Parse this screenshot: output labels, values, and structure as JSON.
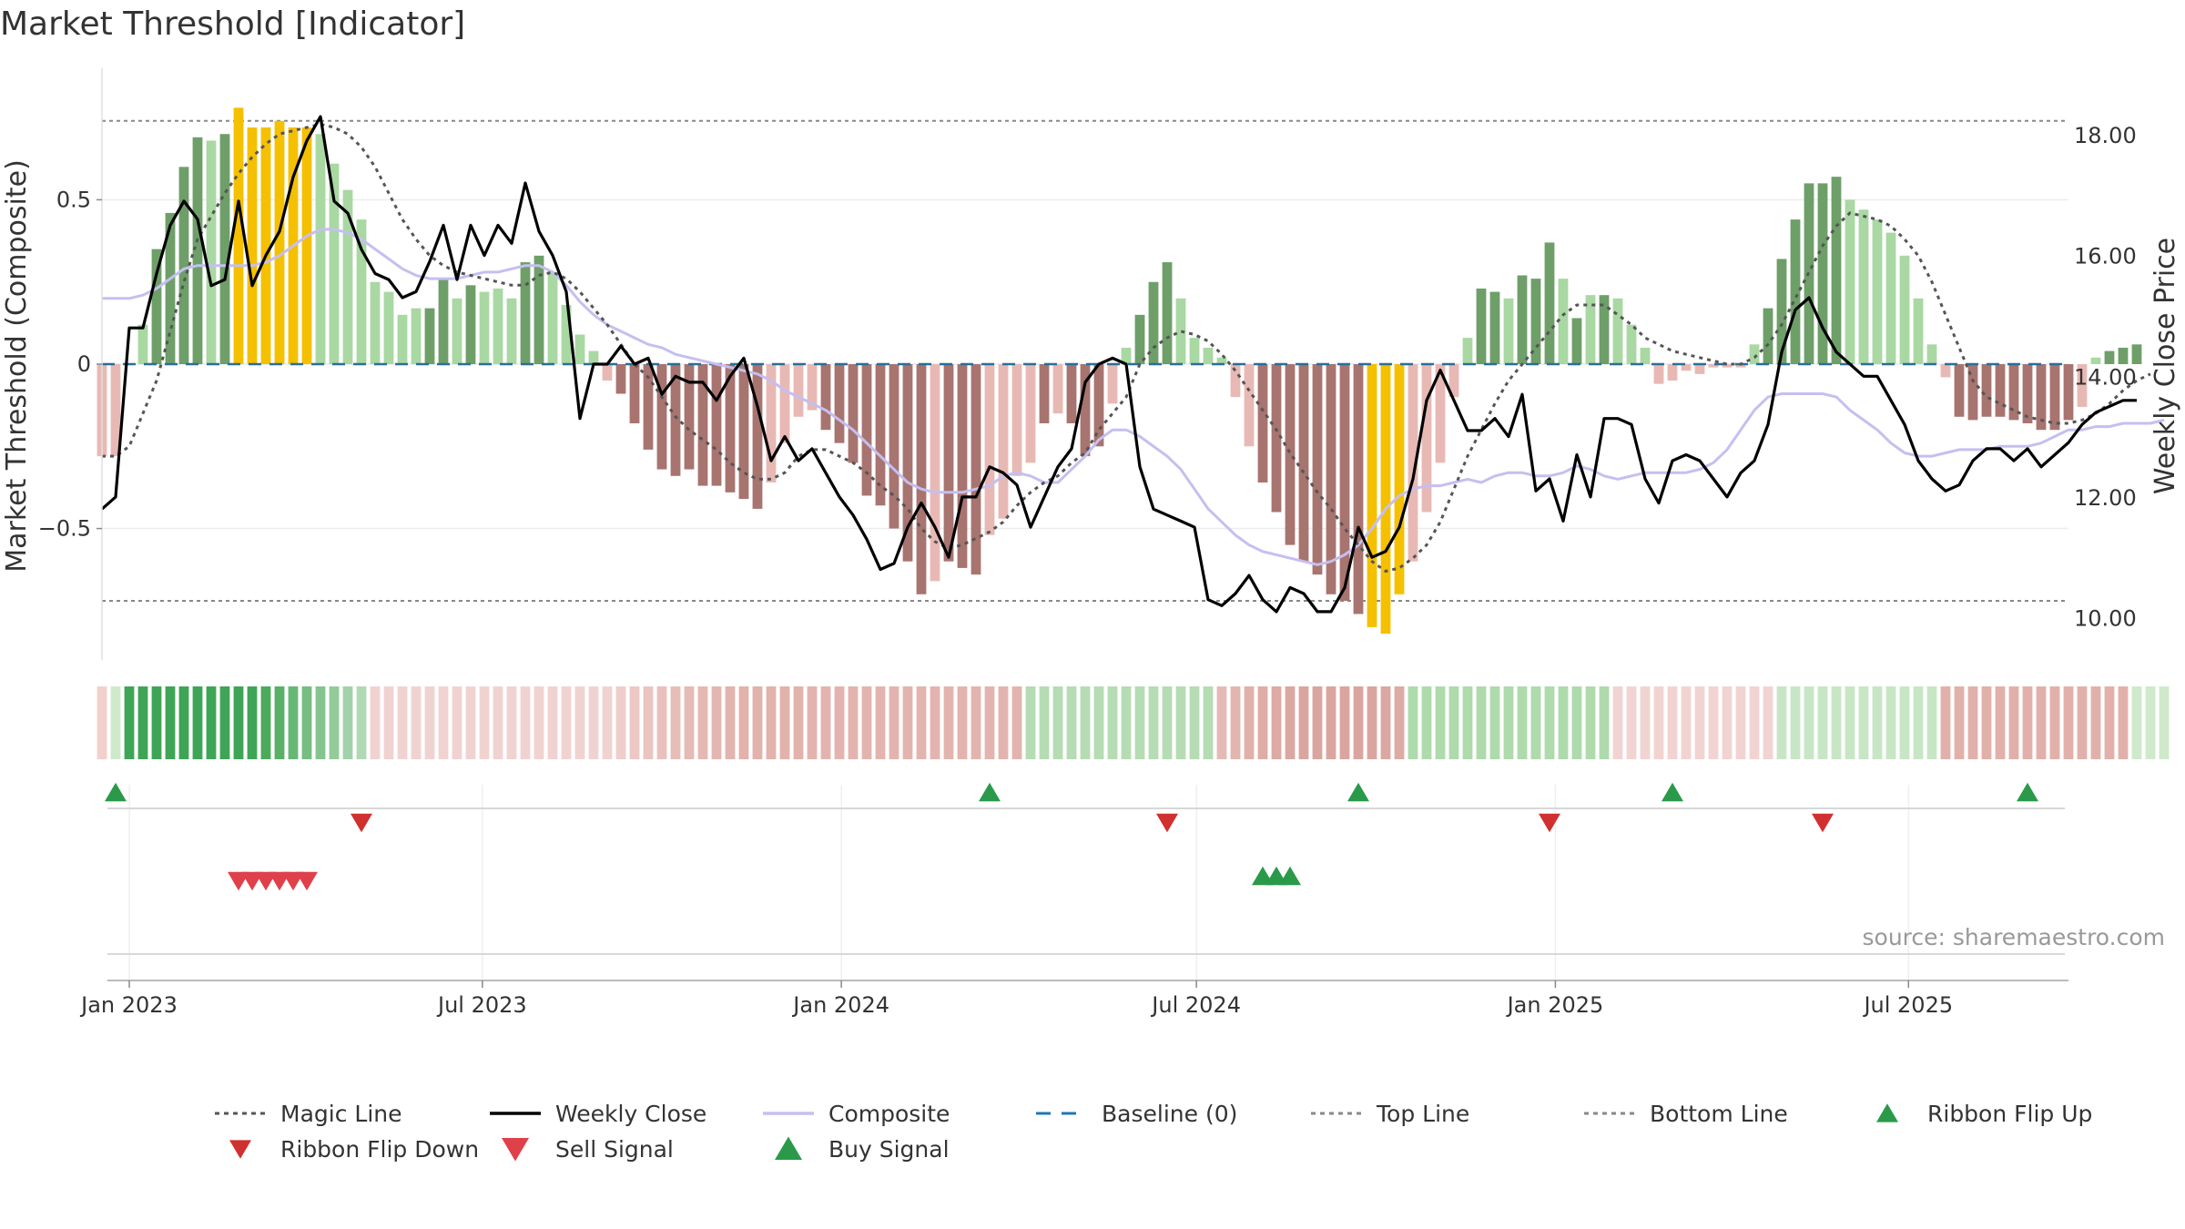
{
  "chart_data": {
    "type": "bar",
    "title": "Market Threshold [Indicator]",
    "ylabel_left": "Market Threshold (Composite)",
    "ylabel_right": "Weekly Close Price",
    "source": "source: sharemaestro.com",
    "ylim_left": [
      -0.9,
      0.9
    ],
    "ylim_right": [
      9.3,
      19.1
    ],
    "left_ticks": [
      {
        "v": 0.5,
        "label": "0.5"
      },
      {
        "v": 0,
        "label": "0"
      },
      {
        "v": -0.5,
        "label": "−0.5"
      }
    ],
    "right_ticks": [
      {
        "v": 18,
        "label": "18.00"
      },
      {
        "v": 16,
        "label": "16.00"
      },
      {
        "v": 14,
        "label": "14.00"
      },
      {
        "v": 12,
        "label": "12.00"
      },
      {
        "v": 10,
        "label": "10.00"
      }
    ],
    "x_ticks": [
      {
        "date": "2023-01-01",
        "label": "Jan 2023"
      },
      {
        "date": "2023-07-01",
        "label": "Jul 2023"
      },
      {
        "date": "2024-01-01",
        "label": "Jan 2024"
      },
      {
        "date": "2024-07-01",
        "label": "Jul 2024"
      },
      {
        "date": "2025-01-01",
        "label": "Jan 2025"
      },
      {
        "date": "2025-07-01",
        "label": "Jul 2025"
      }
    ],
    "x_range": [
      "2022-12-18",
      "2025-09-21"
    ],
    "start_date": "2022-12-18",
    "top_line": 0.74,
    "bottom_line": -0.72,
    "baseline": 0,
    "bars": [
      -0.28,
      -0.28,
      0,
      0.12,
      0.35,
      0.46,
      0.6,
      0.69,
      0.68,
      0.7,
      0.78,
      0.72,
      0.72,
      0.74,
      0.72,
      0.72,
      0.7,
      0.61,
      0.53,
      0.44,
      0.25,
      0.22,
      0.15,
      0.17,
      0.17,
      0.26,
      0.2,
      0.24,
      0.22,
      0.23,
      0.2,
      0.31,
      0.33,
      0.28,
      0.18,
      0.09,
      0.04,
      -0.05,
      -0.09,
      -0.18,
      -0.26,
      -0.32,
      -0.34,
      -0.32,
      -0.37,
      -0.37,
      -0.39,
      -0.41,
      -0.44,
      -0.36,
      -0.24,
      -0.16,
      -0.14,
      -0.2,
      -0.24,
      -0.3,
      -0.4,
      -0.43,
      -0.5,
      -0.6,
      -0.7,
      -0.66,
      -0.6,
      -0.62,
      -0.64,
      -0.52,
      -0.47,
      -0.34,
      -0.3,
      -0.18,
      -0.15,
      -0.18,
      -0.28,
      -0.25,
      -0.12,
      0.05,
      0.15,
      0.25,
      0.31,
      0.2,
      0.08,
      0.05,
      0.02,
      -0.1,
      -0.25,
      -0.36,
      -0.45,
      -0.55,
      -0.6,
      -0.64,
      -0.7,
      -0.72,
      -0.76,
      -0.8,
      -0.82,
      -0.7,
      -0.6,
      -0.45,
      -0.3,
      -0.1,
      0.08,
      0.23,
      0.22,
      0.2,
      0.27,
      0.26,
      0.37,
      0.26,
      0.14,
      0.21,
      0.21,
      0.2,
      0.12,
      0.05,
      -0.06,
      -0.05,
      -0.02,
      -0.03,
      -0.01,
      -0.01,
      -0.01,
      0.06,
      0.17,
      0.32,
      0.44,
      0.55,
      0.55,
      0.57,
      0.5,
      0.47,
      0.44,
      0.4,
      0.33,
      0.2,
      0.06,
      -0.04,
      -0.16,
      -0.17,
      -0.16,
      -0.16,
      -0.17,
      -0.18,
      -0.2,
      -0.2,
      -0.17,
      -0.13,
      0.02,
      0.04,
      0.05,
      0.06
    ],
    "bar_colors": [
      "#e8b9b4",
      "#e8b9b4",
      "#e8b9b4",
      "#a9d8a3",
      "#6e9f69",
      "#6e9f69",
      "#6e9f69",
      "#6e9f69",
      "#a9d8a3",
      "#6e9f69",
      "#f5c000",
      "#f5c000",
      "#f5c000",
      "#f5c000",
      "#f5c000",
      "#f5c000",
      "#a9d8a3",
      "#a9d8a3",
      "#a9d8a3",
      "#a9d8a3",
      "#a9d8a3",
      "#a9d8a3",
      "#a9d8a3",
      "#a9d8a3",
      "#6e9f69",
      "#6e9f69",
      "#a9d8a3",
      "#6e9f69",
      "#a9d8a3",
      "#a9d8a3",
      "#a9d8a3",
      "#6e9f69",
      "#6e9f69",
      "#a9d8a3",
      "#a9d8a3",
      "#a9d8a3",
      "#a9d8a3",
      "#e8b9b4",
      "#a87470",
      "#a87470",
      "#a87470",
      "#a87470",
      "#a87470",
      "#a87470",
      "#a87470",
      "#a87470",
      "#a87470",
      "#a87470",
      "#a87470",
      "#e8b9b4",
      "#e8b9b4",
      "#e8b9b4",
      "#e8b9b4",
      "#a87470",
      "#a87470",
      "#a87470",
      "#a87470",
      "#a87470",
      "#a87470",
      "#a87470",
      "#a87470",
      "#e8b9b4",
      "#a87470",
      "#a87470",
      "#a87470",
      "#e8b9b4",
      "#e8b9b4",
      "#e8b9b4",
      "#e8b9b4",
      "#a87470",
      "#e8b9b4",
      "#a87470",
      "#a87470",
      "#a87470",
      "#e8b9b4",
      "#a9d8a3",
      "#6e9f69",
      "#6e9f69",
      "#6e9f69",
      "#a9d8a3",
      "#a9d8a3",
      "#a9d8a3",
      "#a9d8a3",
      "#e8b9b4",
      "#e8b9b4",
      "#a87470",
      "#a87470",
      "#a87470",
      "#a87470",
      "#a87470",
      "#a87470",
      "#a87470",
      "#a87470",
      "#f5c000",
      "#f5c000",
      "#f5c000",
      "#e8b9b4",
      "#e8b9b4",
      "#e8b9b4",
      "#e8b9b4",
      "#a9d8a3",
      "#6e9f69",
      "#6e9f69",
      "#a9d8a3",
      "#6e9f69",
      "#6e9f69",
      "#6e9f69",
      "#a9d8a3",
      "#6e9f69",
      "#a9d8a3",
      "#6e9f69",
      "#a9d8a3",
      "#a9d8a3",
      "#a9d8a3",
      "#e8b9b4",
      "#e8b9b4",
      "#e8b9b4",
      "#e8b9b4",
      "#e8b9b4",
      "#e8b9b4",
      "#e8b9b4",
      "#a9d8a3",
      "#6e9f69",
      "#6e9f69",
      "#6e9f69",
      "#6e9f69",
      "#6e9f69",
      "#6e9f69",
      "#a9d8a3",
      "#a9d8a3",
      "#a9d8a3",
      "#a9d8a3",
      "#a9d8a3",
      "#a9d8a3",
      "#a9d8a3",
      "#e8b9b4",
      "#a87470",
      "#a87470",
      "#a87470",
      "#a87470",
      "#a87470",
      "#a87470",
      "#a87470",
      "#a87470",
      "#a87470",
      "#e8b9b4",
      "#a9d8a3",
      "#6e9f69",
      "#6e9f69",
      "#6e9f69"
    ],
    "series": [
      {
        "name": "Magic Line",
        "color": "#555555",
        "style": "dotted",
        "axis": "left",
        "values": [
          -0.28,
          -0.28,
          -0.25,
          -0.15,
          -0.05,
          0.1,
          0.25,
          0.38,
          0.45,
          0.52,
          0.58,
          0.63,
          0.67,
          0.7,
          0.71,
          0.72,
          0.73,
          0.72,
          0.7,
          0.66,
          0.6,
          0.52,
          0.44,
          0.38,
          0.33,
          0.3,
          0.28,
          0.27,
          0.26,
          0.25,
          0.24,
          0.24,
          0.27,
          0.28,
          0.26,
          0.22,
          0.17,
          0.12,
          0.06,
          0.0,
          -0.04,
          -0.1,
          -0.16,
          -0.2,
          -0.23,
          -0.26,
          -0.3,
          -0.33,
          -0.35,
          -0.35,
          -0.33,
          -0.28,
          -0.26,
          -0.26,
          -0.28,
          -0.3,
          -0.33,
          -0.37,
          -0.4,
          -0.44,
          -0.5,
          -0.54,
          -0.56,
          -0.55,
          -0.53,
          -0.51,
          -0.48,
          -0.43,
          -0.39,
          -0.36,
          -0.34,
          -0.3,
          -0.27,
          -0.2,
          -0.15,
          -0.1,
          0.0,
          0.05,
          0.08,
          0.1,
          0.09,
          0.07,
          0.03,
          -0.02,
          -0.08,
          -0.14,
          -0.2,
          -0.27,
          -0.33,
          -0.39,
          -0.44,
          -0.5,
          -0.55,
          -0.6,
          -0.63,
          -0.62,
          -0.59,
          -0.55,
          -0.48,
          -0.38,
          -0.28,
          -0.2,
          -0.12,
          -0.05,
          0.0,
          0.05,
          0.1,
          0.15,
          0.18,
          0.18,
          0.18,
          0.15,
          0.12,
          0.08,
          0.06,
          0.04,
          0.03,
          0.02,
          0.01,
          0.0,
          0.0,
          0.02,
          0.06,
          0.12,
          0.2,
          0.28,
          0.36,
          0.42,
          0.46,
          0.45,
          0.44,
          0.42,
          0.38,
          0.33,
          0.25,
          0.15,
          0.05,
          -0.05,
          -0.1,
          -0.12,
          -0.14,
          -0.16,
          -0.17,
          -0.18,
          -0.18,
          -0.17,
          -0.15,
          -0.12,
          -0.08,
          -0.05,
          -0.03
        ]
      },
      {
        "name": "Weekly Close",
        "color": "#000000",
        "style": "solid",
        "axis": "right",
        "values": [
          11.8,
          12.0,
          14.8,
          14.8,
          15.7,
          16.5,
          16.9,
          16.6,
          15.5,
          15.6,
          16.9,
          15.5,
          16.0,
          16.4,
          17.3,
          17.9,
          18.3,
          16.9,
          16.7,
          16.1,
          15.7,
          15.6,
          15.3,
          15.4,
          15.9,
          16.5,
          15.6,
          16.5,
          16.0,
          16.5,
          16.2,
          17.2,
          16.4,
          16.0,
          15.4,
          13.3,
          14.2,
          14.2,
          14.5,
          14.2,
          14.3,
          13.7,
          14.0,
          13.9,
          13.9,
          13.6,
          14.0,
          14.3,
          13.5,
          12.6,
          13.0,
          12.6,
          12.8,
          12.4,
          12.0,
          11.7,
          11.3,
          10.8,
          10.9,
          11.5,
          11.9,
          11.5,
          11.0,
          12.0,
          12.0,
          12.5,
          12.4,
          12.2,
          11.5,
          12.0,
          12.5,
          12.8,
          13.9,
          14.2,
          14.3,
          14.2,
          12.5,
          11.8,
          11.7,
          11.6,
          11.5,
          10.3,
          10.2,
          10.4,
          10.7,
          10.3,
          10.1,
          10.5,
          10.4,
          10.1,
          10.1,
          10.5,
          11.5,
          11.0,
          11.1,
          11.5,
          12.3,
          13.6,
          14.1,
          13.6,
          13.1,
          13.1,
          13.3,
          13.0,
          13.7,
          12.1,
          12.3,
          11.6,
          12.7,
          12.0,
          13.3,
          13.3,
          13.2,
          12.3,
          11.9,
          12.6,
          12.7,
          12.6,
          12.3,
          12.0,
          12.4,
          12.6,
          13.2,
          14.4,
          15.1,
          15.3,
          14.8,
          14.4,
          14.2,
          14.0,
          14.0,
          13.6,
          13.2,
          12.6,
          12.3,
          12.1,
          12.2,
          12.6,
          12.8,
          12.8,
          12.6,
          12.8,
          12.5,
          12.7,
          12.9,
          13.2,
          13.4,
          13.5,
          13.6,
          13.6
        ]
      },
      {
        "name": "Composite",
        "color": "#c5bff0",
        "style": "solid",
        "axis": "left",
        "values": [
          0.2,
          0.2,
          0.2,
          0.21,
          0.23,
          0.26,
          0.29,
          0.3,
          0.3,
          0.3,
          0.3,
          0.3,
          0.31,
          0.33,
          0.36,
          0.39,
          0.41,
          0.41,
          0.4,
          0.38,
          0.35,
          0.32,
          0.29,
          0.27,
          0.26,
          0.26,
          0.26,
          0.27,
          0.28,
          0.28,
          0.29,
          0.3,
          0.3,
          0.28,
          0.24,
          0.19,
          0.15,
          0.12,
          0.1,
          0.08,
          0.06,
          0.05,
          0.03,
          0.02,
          0.01,
          0.0,
          -0.01,
          -0.02,
          -0.03,
          -0.05,
          -0.08,
          -0.1,
          -0.12,
          -0.14,
          -0.17,
          -0.2,
          -0.24,
          -0.28,
          -0.32,
          -0.36,
          -0.38,
          -0.39,
          -0.39,
          -0.39,
          -0.38,
          -0.37,
          -0.34,
          -0.33,
          -0.34,
          -0.36,
          -0.36,
          -0.32,
          -0.28,
          -0.23,
          -0.2,
          -0.2,
          -0.22,
          -0.25,
          -0.28,
          -0.32,
          -0.38,
          -0.44,
          -0.48,
          -0.52,
          -0.55,
          -0.57,
          -0.58,
          -0.59,
          -0.6,
          -0.61,
          -0.6,
          -0.58,
          -0.55,
          -0.5,
          -0.44,
          -0.4,
          -0.38,
          -0.37,
          -0.37,
          -0.36,
          -0.35,
          -0.36,
          -0.34,
          -0.33,
          -0.33,
          -0.34,
          -0.34,
          -0.33,
          -0.31,
          -0.32,
          -0.34,
          -0.35,
          -0.34,
          -0.33,
          -0.33,
          -0.33,
          -0.33,
          -0.32,
          -0.3,
          -0.26,
          -0.2,
          -0.14,
          -0.1,
          -0.09,
          -0.09,
          -0.09,
          -0.09,
          -0.1,
          -0.14,
          -0.17,
          -0.2,
          -0.24,
          -0.27,
          -0.28,
          -0.28,
          -0.27,
          -0.26,
          -0.26,
          -0.26,
          -0.25,
          -0.25,
          -0.25,
          -0.24,
          -0.22,
          -0.2,
          -0.2,
          -0.19,
          -0.19,
          -0.18,
          -0.18,
          -0.18,
          -0.17
        ]
      }
    ],
    "ribbon": {
      "colors": [
        "#f2d0cd",
        "#cfe9cb",
        "#3fa556",
        "#3fa556",
        "#3fa556",
        "#3fa556",
        "#3fa556",
        "#3fa556",
        "#3fa556",
        "#3fa556",
        "#3fa556",
        "#3fa556",
        "#4caa5c",
        "#59b066",
        "#68b774",
        "#76be81",
        "#84c48e",
        "#93cb9b",
        "#a2d2a9",
        "#b0d9b5",
        "#f0d3d0",
        "#f0d3d0",
        "#f0d3d0",
        "#f0d3d0",
        "#f0d3d0",
        "#f0d3d0",
        "#f0d3d0",
        "#f0d3d0",
        "#f0d3d0",
        "#f0d3d0",
        "#f0d3d0",
        "#f0d3d0",
        "#f0d3d0",
        "#f0d3d0",
        "#f0d3d0",
        "#f0d3d0",
        "#f0d3d0",
        "#f0d3d0",
        "#efcdca",
        "#edc8c5",
        "#ebc4c0",
        "#e9c0bc",
        "#e7bdb8",
        "#e6bab5",
        "#e5b8b3",
        "#e4b6b1",
        "#e3b4af",
        "#e2b2ad",
        "#e2b2ad",
        "#e2b2ad",
        "#e2b2ad",
        "#e2b2ad",
        "#e3b4af",
        "#e3b4af",
        "#e3b4af",
        "#e3b4af",
        "#e3b4af",
        "#e3b4af",
        "#e3b4af",
        "#e3b4af",
        "#e3b4af",
        "#e3b4af",
        "#e3b4af",
        "#e3b4af",
        "#e3b4af",
        "#e3b4af",
        "#e3b4af",
        "#e3b4af",
        "#b5dcb3",
        "#b5dcb3",
        "#b5dcb3",
        "#b5dcb3",
        "#b5dcb3",
        "#b5dcb3",
        "#b5dcb3",
        "#b5dcb3",
        "#b5dcb3",
        "#b5dcb3",
        "#b5dcb3",
        "#b5dcb3",
        "#b5dcb3",
        "#b5dcb3",
        "#e5bab6",
        "#e3b5b0",
        "#e1b0ab",
        "#dfaca6",
        "#ddaaa4",
        "#dba7a2",
        "#daa5a0",
        "#daa5a0",
        "#daa5a0",
        "#daa5a0",
        "#daa5a0",
        "#daa5a0",
        "#dba7a2",
        "#ddaaa4",
        "#aedaac",
        "#aedaac",
        "#aedaac",
        "#aedaac",
        "#aedaac",
        "#aedaac",
        "#aedaac",
        "#aedaac",
        "#aedaac",
        "#aedaac",
        "#aedaac",
        "#aedaac",
        "#aedaac",
        "#aedaac",
        "#aedaac",
        "#f1d4d1",
        "#f1d4d1",
        "#f1d4d1",
        "#f1d4d1",
        "#f1d4d1",
        "#f1d4d1",
        "#f1d4d1",
        "#f1d4d1",
        "#f1d4d1",
        "#f1d4d1",
        "#f1d4d1",
        "#f1d4d1",
        "#c8e6c5",
        "#c8e6c5",
        "#c8e6c5",
        "#c8e6c5",
        "#c8e6c5",
        "#c8e6c5",
        "#c8e6c5",
        "#c8e6c5",
        "#c8e6c5",
        "#c8e6c5",
        "#c8e6c5",
        "#c8e6c5",
        "#e2b0ab",
        "#e2b0ab",
        "#e2b0ab",
        "#e2b0ab",
        "#e2b0ab",
        "#e2b0ab",
        "#e2b0ab",
        "#e2b0ab",
        "#e2b0ab",
        "#e2b0ab",
        "#e2b0ab",
        "#e2b0ab",
        "#e2b0ab",
        "#e2b0ab",
        "#cfe9cb",
        "#cfe9cb",
        "#cfe9cb"
      ]
    },
    "ribbon_flip_up": [
      1,
      65,
      92,
      115,
      141
    ],
    "ribbon_flip_down": [
      19,
      78,
      106,
      126
    ],
    "sell_signals": [
      10,
      11,
      12,
      13,
      14,
      15
    ],
    "buy_signals": [
      85,
      86,
      87
    ],
    "legend": [
      {
        "label": "Magic Line",
        "kind": "dotted",
        "color": "#555555"
      },
      {
        "label": "Weekly Close",
        "kind": "solid",
        "color": "#000000"
      },
      {
        "label": "Composite",
        "kind": "solid",
        "color": "#c5bff0"
      },
      {
        "label": "Baseline (0)",
        "kind": "dashed",
        "color": "#1f77b4"
      },
      {
        "label": "Top Line",
        "kind": "dotted",
        "color": "#888888"
      },
      {
        "label": "Bottom Line",
        "kind": "dotted",
        "color": "#888888"
      },
      {
        "label": "Ribbon Flip Up",
        "kind": "tri-up",
        "color": "#2a9a4a"
      },
      {
        "label": "Ribbon Flip Down",
        "kind": "tri-down",
        "color": "#d0302f"
      },
      {
        "label": "Sell Signal",
        "kind": "tri-down",
        "color": "#e0404a"
      },
      {
        "label": "Buy Signal",
        "kind": "tri-up",
        "color": "#2a9a4a"
      }
    ]
  }
}
